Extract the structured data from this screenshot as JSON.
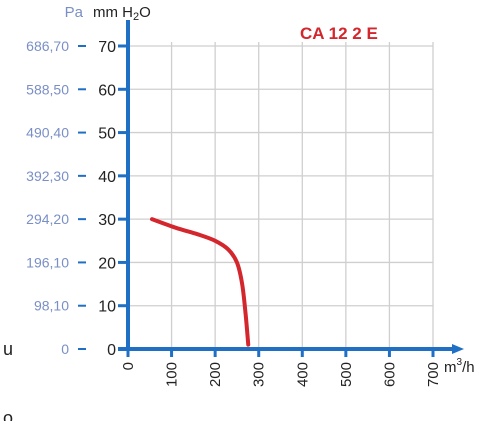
{
  "chart_data": {
    "type": "line",
    "title": "CA 12 2 E",
    "y_unit_left": "Pa",
    "y_unit_right_prefix": "mm H",
    "y_unit_right_sub": "2",
    "y_unit_right_suffix": "O",
    "x_unit_base": "m",
    "x_unit_sup": "3",
    "x_unit_suffix": "/h",
    "xlim": [
      0,
      700
    ],
    "ylim": [
      0,
      70
    ],
    "x_ticks": [
      0,
      100,
      200,
      300,
      400,
      500,
      600,
      700
    ],
    "y_ticks_mm": [
      0,
      10,
      20,
      30,
      40,
      50,
      60,
      70
    ],
    "y_tick_labels_pa": [
      "0",
      "98,10",
      "196,10",
      "294,20",
      "392,30",
      "490,40",
      "588,50",
      "686,70"
    ],
    "grid": true,
    "series": [
      {
        "color": "#d3262d",
        "points": [
          {
            "x": 55,
            "y": 30
          },
          {
            "x": 110,
            "y": 28
          },
          {
            "x": 160,
            "y": 26.5
          },
          {
            "x": 200,
            "y": 25
          },
          {
            "x": 230,
            "y": 23
          },
          {
            "x": 250,
            "y": 20
          },
          {
            "x": 262,
            "y": 15
          },
          {
            "x": 270,
            "y": 8
          },
          {
            "x": 276,
            "y": 1
          }
        ]
      }
    ],
    "colors": {
      "axis": "#1f6fc4",
      "grid": "#cfcfcf",
      "pa_text": "#7a8fc6",
      "curve": "#d3262d"
    }
  },
  "stray_text": {
    "left_mid": "u",
    "left_bottom": "o"
  }
}
